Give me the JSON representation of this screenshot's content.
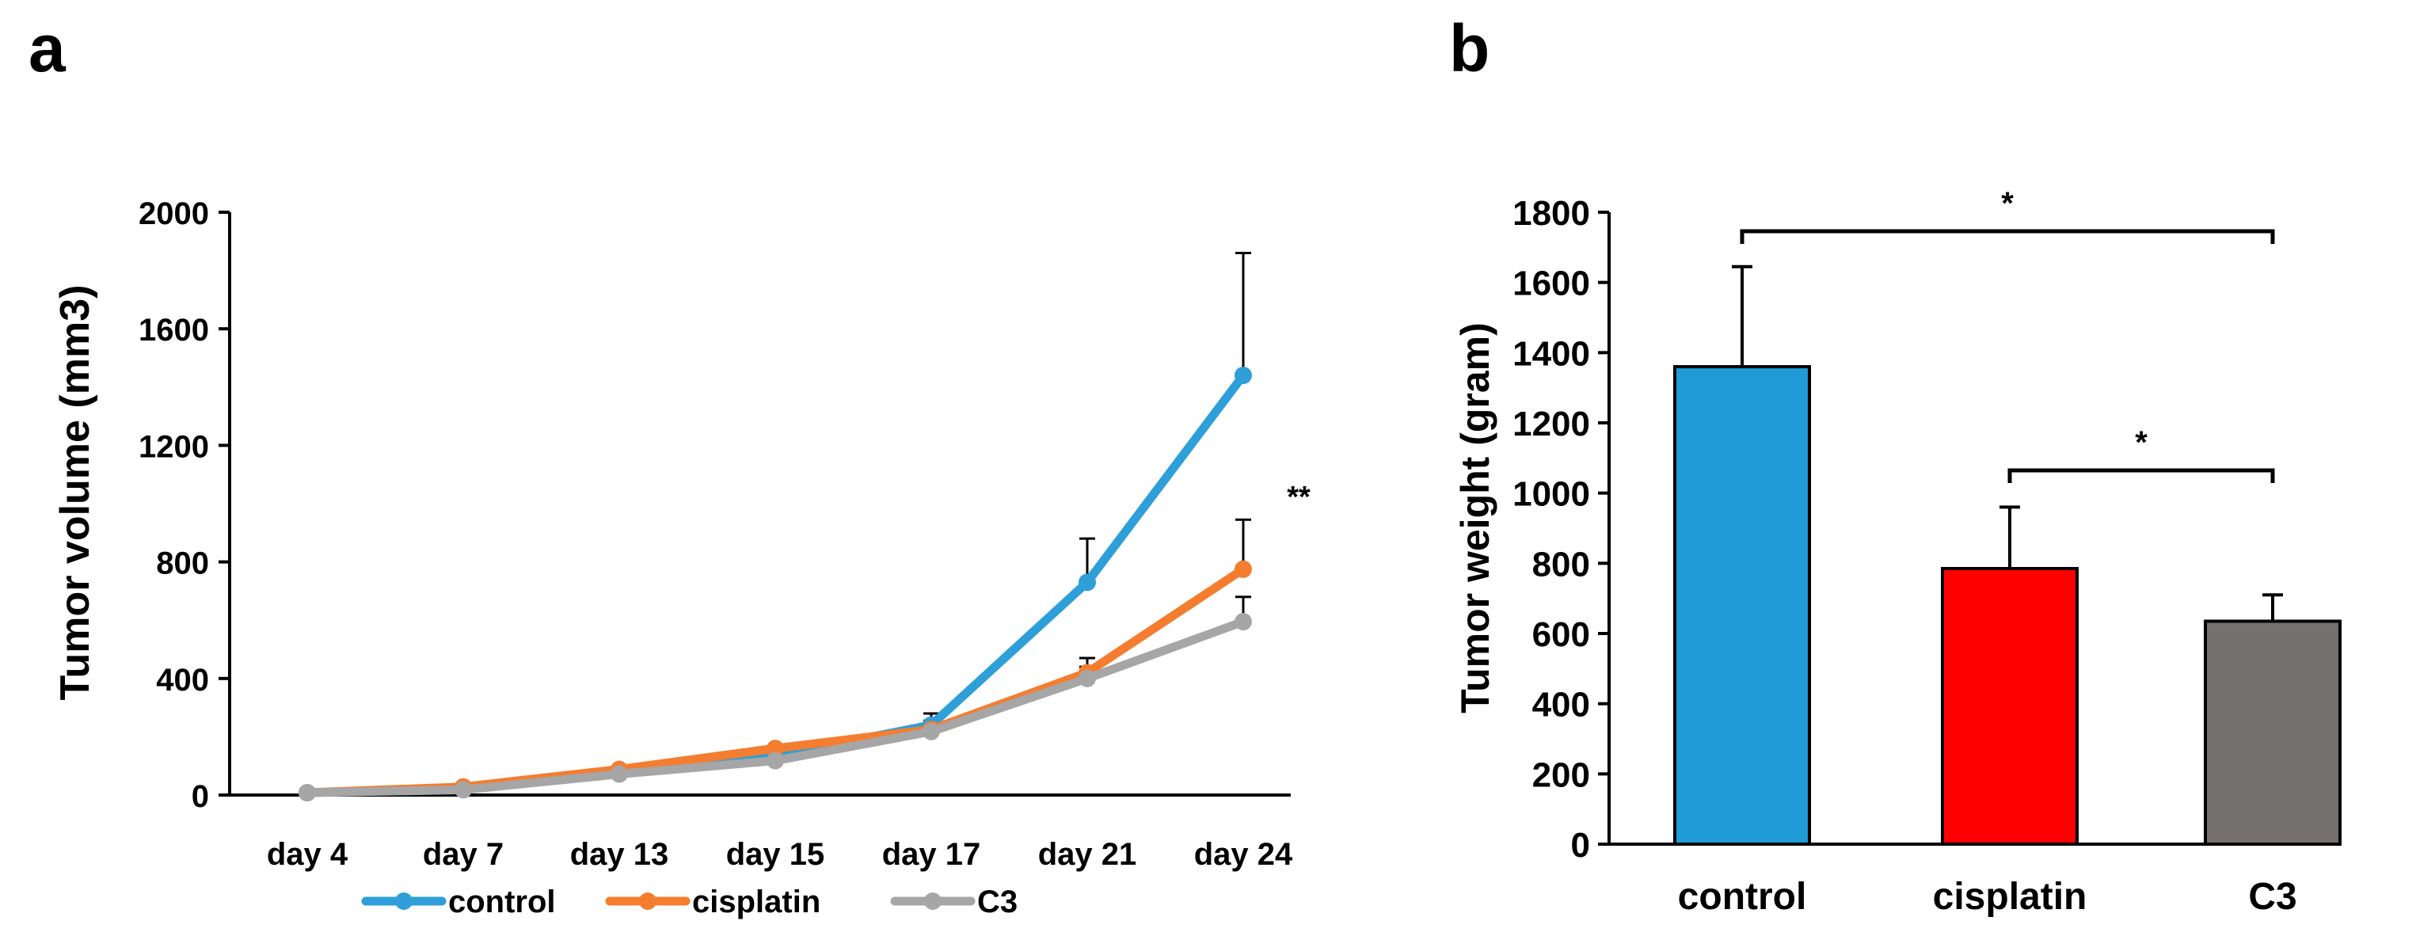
{
  "chart_data": [
    {
      "panel_label": "a",
      "type": "line",
      "title": "",
      "xlabel": "",
      "ylabel": "Tumor volume (mm3)",
      "categories": [
        "day 4",
        "day 7",
        "day 13",
        "day 15",
        "day 17",
        "day 21",
        "day 24"
      ],
      "ylim": [
        0,
        2000
      ],
      "yticks": [
        0,
        400,
        800,
        1200,
        1600,
        2000
      ],
      "grid": false,
      "legend_position": "bottom",
      "series": [
        {
          "name": "control",
          "color": "#2E9FD8",
          "values": [
            8,
            20,
            80,
            135,
            240,
            730,
            1440
          ],
          "errors": [
            null,
            null,
            null,
            null,
            40,
            150,
            420
          ]
        },
        {
          "name": "cisplatin",
          "color": "#F47D2F",
          "values": [
            8,
            28,
            88,
            160,
            225,
            420,
            775
          ],
          "errors": [
            null,
            null,
            null,
            null,
            30,
            50,
            170
          ]
        },
        {
          "name": "C3",
          "color": "#A6A6A6",
          "values": [
            8,
            18,
            72,
            118,
            218,
            400,
            595
          ],
          "errors": [
            null,
            null,
            null,
            null,
            20,
            40,
            85
          ]
        }
      ],
      "annotation": "**"
    },
    {
      "panel_label": "b",
      "type": "bar",
      "title": "",
      "xlabel": "",
      "ylabel": "Tumor weight (gram)",
      "categories": [
        "control",
        "cisplatin",
        "C3"
      ],
      "values": [
        1360,
        785,
        635
      ],
      "errors": [
        285,
        175,
        75
      ],
      "colors": [
        "#1F9BD7",
        "#FF0000",
        "#767171"
      ],
      "ylim": [
        0,
        1800
      ],
      "yticks": [
        0,
        200,
        400,
        600,
        800,
        1000,
        1200,
        1400,
        1600,
        1800
      ],
      "grid": false,
      "significance": [
        {
          "from": "control",
          "to": "C3",
          "label": "*"
        },
        {
          "from": "cisplatin",
          "to": "C3",
          "label": "*"
        }
      ]
    }
  ]
}
